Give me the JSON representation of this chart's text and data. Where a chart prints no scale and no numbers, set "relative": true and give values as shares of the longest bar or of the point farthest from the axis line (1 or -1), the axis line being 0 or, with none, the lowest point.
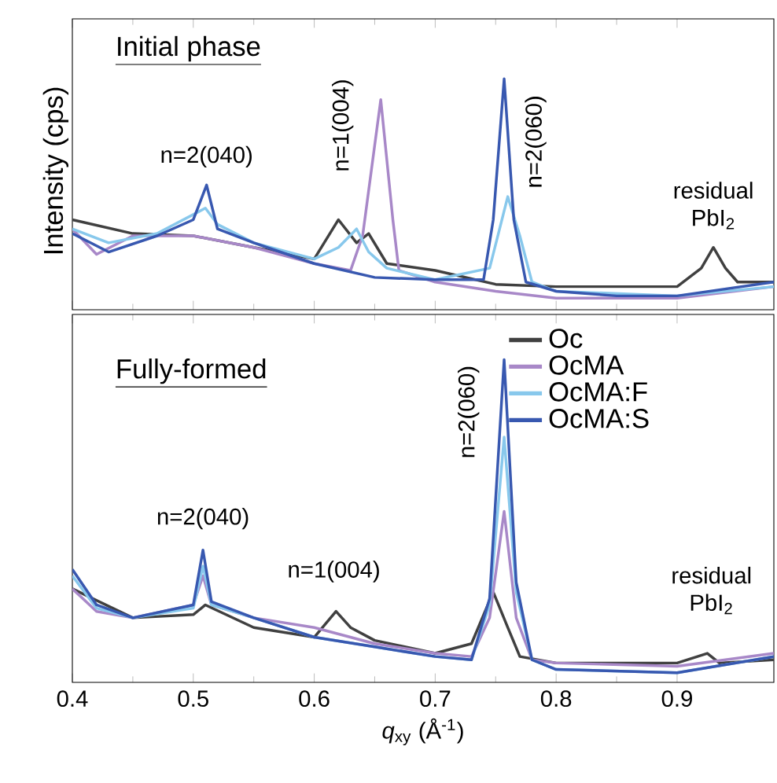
{
  "chart_data": [
    {
      "type": "line",
      "title": "Initial phase",
      "relative": true,
      "xlim": [
        0.4,
        0.98
      ],
      "xticks": [
        0.4,
        0.5,
        0.6,
        0.7,
        0.8,
        0.9
      ],
      "tick_labels": false,
      "legend": false,
      "annotations": [
        {
          "text": "n=2(040)",
          "x": 0.511,
          "y": 0.54
        },
        {
          "text": "n=1(004)",
          "x": 0.62,
          "y": 0.39
        },
        {
          "text": "n=2(060)",
          "x": 0.757,
          "y": 1.0
        },
        {
          "text": "residual PbI$_{2}$",
          "x": 0.93,
          "y": 0.27
        }
      ],
      "series": [
        {
          "color": "#404040",
          "x": [
            0.4,
            0.45,
            0.5,
            0.55,
            0.6,
            0.62,
            0.635,
            0.645,
            0.66,
            0.7,
            0.75,
            0.8,
            0.85,
            0.9,
            0.92,
            0.93,
            0.94,
            0.95,
            0.98
          ],
          "values": [
            0.39,
            0.33,
            0.32,
            0.27,
            0.22,
            0.39,
            0.29,
            0.33,
            0.2,
            0.17,
            0.11,
            0.1,
            0.1,
            0.1,
            0.18,
            0.27,
            0.18,
            0.12,
            0.12
          ]
        },
        {
          "color": "#a888c8",
          "x": [
            0.4,
            0.42,
            0.45,
            0.5,
            0.55,
            0.6,
            0.63,
            0.64,
            0.655,
            0.665,
            0.67,
            0.7,
            0.75,
            0.8,
            0.85,
            0.9,
            0.98
          ],
          "values": [
            0.35,
            0.24,
            0.32,
            0.32,
            0.27,
            0.2,
            0.17,
            0.32,
            0.91,
            0.39,
            0.17,
            0.12,
            0.08,
            0.05,
            0.05,
            0.05,
            0.1
          ]
        },
        {
          "color": "#88c8ec",
          "x": [
            0.4,
            0.43,
            0.47,
            0.51,
            0.52,
            0.55,
            0.6,
            0.62,
            0.635,
            0.645,
            0.66,
            0.7,
            0.745,
            0.76,
            0.77,
            0.78,
            0.8,
            0.9,
            0.98
          ],
          "values": [
            0.35,
            0.29,
            0.33,
            0.44,
            0.37,
            0.29,
            0.22,
            0.27,
            0.35,
            0.25,
            0.18,
            0.13,
            0.18,
            0.49,
            0.32,
            0.12,
            0.08,
            0.06,
            0.1
          ]
        },
        {
          "color": "#3858b0",
          "x": [
            0.4,
            0.43,
            0.47,
            0.5,
            0.511,
            0.52,
            0.55,
            0.6,
            0.65,
            0.7,
            0.74,
            0.748,
            0.757,
            0.765,
            0.775,
            0.8,
            0.85,
            0.9,
            0.98
          ],
          "values": [
            0.33,
            0.25,
            0.32,
            0.39,
            0.54,
            0.35,
            0.29,
            0.2,
            0.14,
            0.13,
            0.13,
            0.39,
            1.0,
            0.39,
            0.12,
            0.08,
            0.06,
            0.06,
            0.12
          ]
        }
      ]
    },
    {
      "type": "line",
      "title": "Fully-formed",
      "relative": true,
      "xlim": [
        0.4,
        0.98
      ],
      "xticks": [
        0.4,
        0.5,
        0.6,
        0.7,
        0.8,
        0.9
      ],
      "tick_labels": "x",
      "legend": "top right",
      "xlabel": "*q*$_{xy}$ (Å$^{-1}$)",
      "ylabel": "Intensity (cps)",
      "annotations": [
        {
          "text": "n=2(040)",
          "x": 0.508,
          "y": 0.41
        },
        {
          "text": "n=1(004)",
          "x": 0.618,
          "y": 0.22
        },
        {
          "text": "n=2(060)",
          "x": 0.757,
          "y": 1.0
        },
        {
          "text": "residual PbI$_{2}$",
          "x": 0.925,
          "y": 0.09
        }
      ],
      "series": [
        {
          "name": "Oc",
          "color": "#404040",
          "x": [
            0.4,
            0.45,
            0.5,
            0.51,
            0.55,
            0.6,
            0.618,
            0.63,
            0.65,
            0.7,
            0.73,
            0.748,
            0.76,
            0.77,
            0.8,
            0.9,
            0.925,
            0.935,
            0.98
          ],
          "values": [
            0.29,
            0.2,
            0.21,
            0.24,
            0.17,
            0.14,
            0.22,
            0.17,
            0.13,
            0.09,
            0.12,
            0.28,
            0.17,
            0.08,
            0.06,
            0.06,
            0.09,
            0.06,
            0.07
          ]
        },
        {
          "name": "OcMA",
          "color": "#a888c8",
          "x": [
            0.4,
            0.42,
            0.45,
            0.5,
            0.508,
            0.515,
            0.55,
            0.6,
            0.65,
            0.7,
            0.73,
            0.745,
            0.757,
            0.767,
            0.78,
            0.8,
            0.9,
            0.98
          ],
          "values": [
            0.29,
            0.22,
            0.2,
            0.24,
            0.33,
            0.24,
            0.2,
            0.17,
            0.12,
            0.09,
            0.08,
            0.2,
            0.53,
            0.2,
            0.07,
            0.06,
            0.05,
            0.09
          ]
        },
        {
          "name": "OcMA:F",
          "color": "#88c8ec",
          "x": [
            0.4,
            0.42,
            0.45,
            0.5,
            0.508,
            0.515,
            0.55,
            0.6,
            0.65,
            0.7,
            0.73,
            0.745,
            0.757,
            0.767,
            0.78,
            0.8,
            0.9,
            0.98
          ],
          "values": [
            0.33,
            0.23,
            0.2,
            0.23,
            0.36,
            0.24,
            0.2,
            0.14,
            0.11,
            0.08,
            0.07,
            0.24,
            0.76,
            0.28,
            0.07,
            0.04,
            0.03,
            0.08
          ]
        },
        {
          "name": "OcMA:S",
          "color": "#3858b0",
          "x": [
            0.4,
            0.42,
            0.45,
            0.5,
            0.508,
            0.515,
            0.55,
            0.6,
            0.65,
            0.7,
            0.73,
            0.745,
            0.757,
            0.767,
            0.78,
            0.8,
            0.9,
            0.98
          ],
          "values": [
            0.35,
            0.24,
            0.2,
            0.24,
            0.41,
            0.25,
            0.2,
            0.14,
            0.11,
            0.08,
            0.07,
            0.26,
            1.0,
            0.31,
            0.07,
            0.04,
            0.03,
            0.08
          ]
        }
      ]
    }
  ]
}
